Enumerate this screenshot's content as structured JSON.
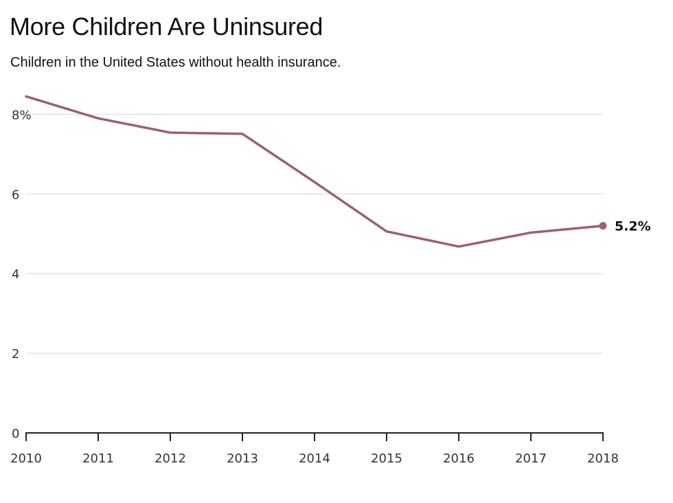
{
  "header": {
    "title": "More Children Are Uninsured",
    "subtitle": "Children in the United States without health insurance."
  },
  "colors": {
    "line": "#9a6076",
    "grid": "#e2e2e2",
    "axis": "#222222"
  },
  "chart_data": {
    "type": "line",
    "title": "More Children Are Uninsured",
    "subtitle": "Children in the United States without health insurance.",
    "xlabel": "",
    "ylabel": "",
    "x": [
      2010,
      2011,
      2012,
      2013,
      2014,
      2015,
      2016,
      2017,
      2018
    ],
    "x_tick_labels": [
      "2010",
      "2011",
      "2012",
      "2013",
      "2014",
      "2015",
      "2016",
      "2017",
      "2018"
    ],
    "series": [
      {
        "values": [
          8.45,
          7.9,
          7.54,
          7.51,
          6.3,
          5.06,
          4.68,
          5.03,
          5.2
        ]
      }
    ],
    "ylim": [
      0,
      8.8
    ],
    "y_ticks": [
      0,
      2,
      4,
      6,
      8
    ],
    "y_tick_labels": [
      "0",
      "2",
      "4",
      "6",
      "8%"
    ],
    "grid": true,
    "end_label": "5.2%"
  }
}
